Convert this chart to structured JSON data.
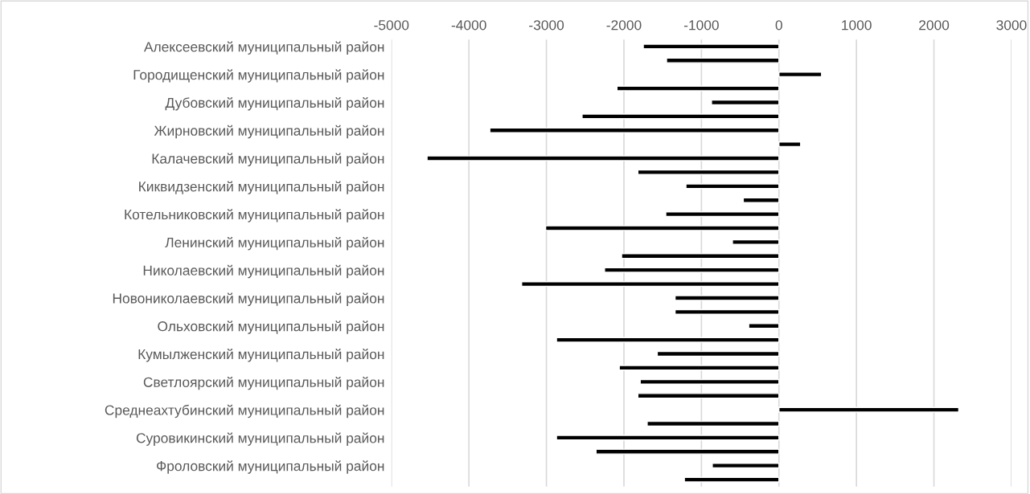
{
  "chart_data": {
    "type": "bar",
    "orientation": "horizontal",
    "categories": [
      "Алексеевский муниципальный район",
      null,
      "Городищенский муниципальный район",
      null,
      "Дубовский муниципальный район",
      null,
      "Жирновский муниципальный район",
      null,
      "Калачевский муниципальный район",
      null,
      "Киквидзенский муниципальный район",
      null,
      "Котельниковский муниципальный район",
      null,
      "Ленинский муниципальный район",
      null,
      "Николаевский муниципальный район",
      null,
      "Новониколаевский муниципальный район",
      null,
      "Ольховский муниципальный район",
      null,
      "Кумылженский муниципальный район",
      null,
      "Светлоярский муниципальный район",
      null,
      "Среднеахтубинский муниципальный район",
      null,
      "Суровикинский муниципальный район",
      null,
      "Фроловский муниципальный район",
      null
    ],
    "values": [
      -1750,
      -1450,
      550,
      -2090,
      -870,
      -2540,
      -3730,
      280,
      -4540,
      -1820,
      -1200,
      -460,
      -1460,
      -3010,
      -600,
      -2030,
      -2250,
      -3320,
      -1340,
      -1340,
      -390,
      -2870,
      -1570,
      -2060,
      -1790,
      -1820,
      2320,
      -1700,
      -2870,
      -2360,
      -860,
      -1220
    ],
    "color": "#000000",
    "xlim": [
      -5000,
      3000
    ],
    "xticks": [
      -5000,
      -4000,
      -3000,
      -2000,
      -1000,
      0,
      1000,
      2000,
      3000
    ],
    "grid": "x"
  }
}
